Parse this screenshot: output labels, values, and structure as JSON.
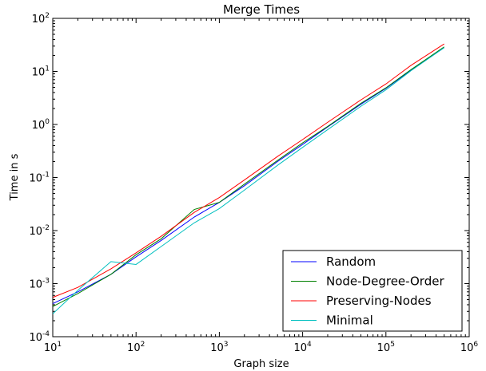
{
  "chart_data": {
    "type": "line",
    "title": "Merge Times",
    "xlabel": "Graph size",
    "ylabel": "Time in s",
    "xscale": "log",
    "yscale": "log",
    "xlim": [
      10,
      1000000
    ],
    "ylim": [
      0.0001,
      100
    ],
    "x_ticks": [
      {
        "base": "10",
        "exp": "1"
      },
      {
        "base": "10",
        "exp": "2"
      },
      {
        "base": "10",
        "exp": "3"
      },
      {
        "base": "10",
        "exp": "4"
      },
      {
        "base": "10",
        "exp": "5"
      },
      {
        "base": "10",
        "exp": "6"
      }
    ],
    "y_ticks": [
      {
        "base": "10",
        "exp": "-4"
      },
      {
        "base": "10",
        "exp": "-3"
      },
      {
        "base": "10",
        "exp": "-2"
      },
      {
        "base": "10",
        "exp": "-1"
      },
      {
        "base": "10",
        "exp": "0"
      },
      {
        "base": "10",
        "exp": "1"
      },
      {
        "base": "10",
        "exp": "2"
      }
    ],
    "grid": false,
    "legend_position": "bottom-right",
    "series": [
      {
        "name": "Random",
        "color": "#0000ff",
        "x": [
          10,
          20,
          50,
          100,
          200,
          500,
          1000,
          2000,
          5000,
          10000,
          20000,
          50000,
          100000,
          200000,
          500000
        ],
        "y": [
          0.00042,
          0.0007,
          0.0015,
          0.0032,
          0.0065,
          0.018,
          0.034,
          0.07,
          0.2,
          0.42,
          0.9,
          2.4,
          4.8,
          10.5,
          28
        ]
      },
      {
        "name": "Node-Degree-Order",
        "color": "#008000",
        "x": [
          10,
          20,
          50,
          100,
          200,
          500,
          1000,
          2000,
          5000,
          10000,
          20000,
          50000,
          100000,
          200000,
          500000
        ],
        "y": [
          0.00037,
          0.00065,
          0.0015,
          0.0035,
          0.007,
          0.025,
          0.034,
          0.075,
          0.21,
          0.45,
          0.92,
          2.5,
          4.9,
          10.8,
          29
        ]
      },
      {
        "name": "Preserving-Nodes",
        "color": "#ff0000",
        "x": [
          10,
          20,
          50,
          100,
          200,
          500,
          1000,
          2000,
          5000,
          10000,
          20000,
          50000,
          100000,
          200000,
          500000
        ],
        "y": [
          0.00055,
          0.00085,
          0.0019,
          0.0038,
          0.0078,
          0.022,
          0.042,
          0.09,
          0.25,
          0.52,
          1.1,
          2.9,
          5.8,
          13,
          33
        ]
      },
      {
        "name": "Minimal",
        "color": "#00bfbf",
        "x": [
          10,
          20,
          50,
          100,
          200,
          500,
          1000,
          2000,
          5000,
          10000,
          20000,
          50000,
          100000,
          200000,
          500000
        ],
        "y": [
          0.00027,
          0.00075,
          0.0026,
          0.0023,
          0.005,
          0.014,
          0.026,
          0.058,
          0.17,
          0.37,
          0.8,
          2.2,
          4.5,
          10.3,
          28
        ]
      }
    ]
  }
}
